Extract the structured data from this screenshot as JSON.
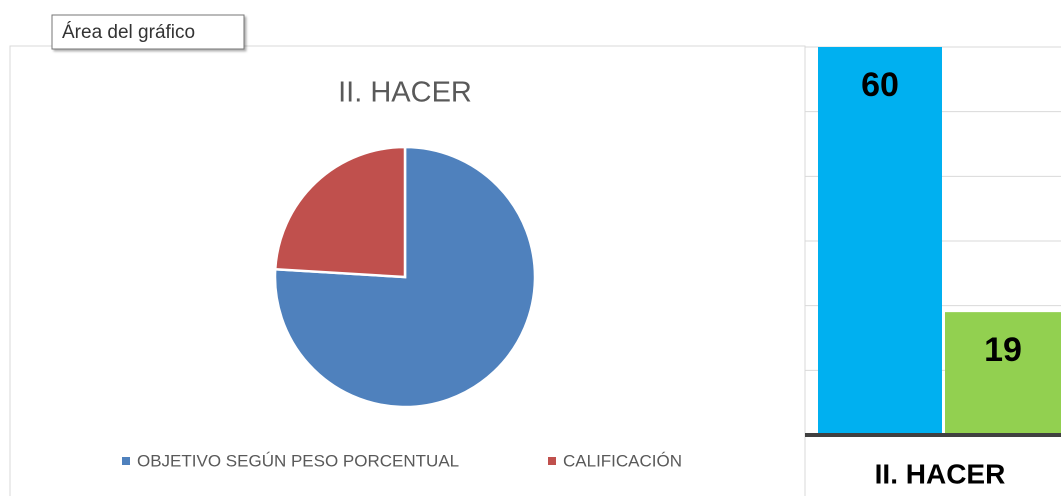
{
  "tooltip": "Área del gráfico",
  "chart_data": [
    {
      "type": "pie",
      "title": "II. HACER",
      "categories": [
        "OBJETIVO SEGÚN PESO PORCENTUAL",
        "CALIFICACIÓN"
      ],
      "values": [
        60,
        19
      ],
      "colors": [
        "#4f81bd",
        "#c0504d"
      ],
      "legend": "bottom"
    },
    {
      "type": "bar",
      "categories": [
        "II. HACER"
      ],
      "series": [
        {
          "color": "#00b0f0",
          "values": [
            60
          ]
        },
        {
          "color": "#92d050",
          "values": [
            19
          ]
        }
      ],
      "ylim": [
        0,
        60
      ],
      "yticks": [
        0,
        10,
        20,
        30,
        40,
        50,
        60
      ],
      "grid": true
    }
  ]
}
